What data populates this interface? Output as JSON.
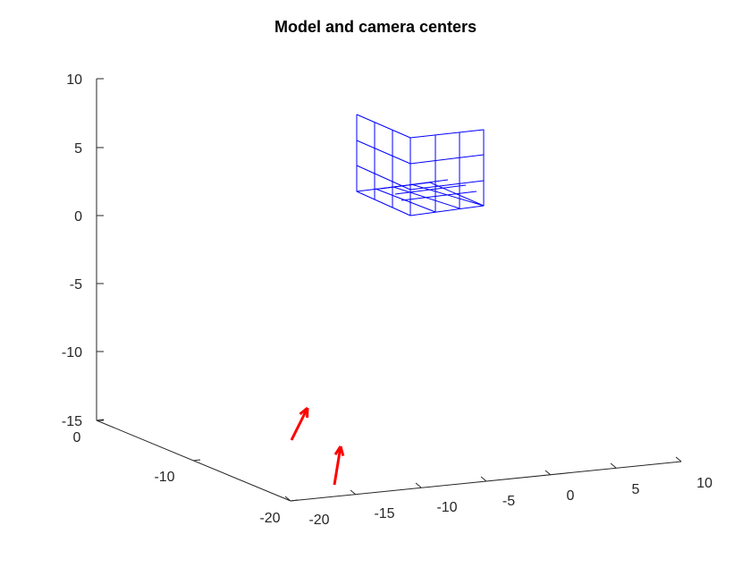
{
  "chart_data": {
    "type": "3d-line",
    "title": "Model and camera centers",
    "xlabel": "",
    "ylabel": "",
    "zlabel": "",
    "grid": false,
    "x_ticks": [
      "-20",
      "-15",
      "-10",
      "-5",
      "0",
      "5",
      "10"
    ],
    "y_ticks": [
      "-20",
      "-10",
      "0"
    ],
    "z_ticks": [
      "10",
      "5",
      "0",
      "-5",
      "-10",
      "-15"
    ],
    "colors": {
      "model": "#0000ff",
      "cameras": "#ff0000",
      "axes": "#262626"
    },
    "series": [
      {
        "type": "mesh",
        "color": "#0000ff"
      },
      {
        "type": "arrows",
        "color": "#ff0000"
      }
    ]
  }
}
